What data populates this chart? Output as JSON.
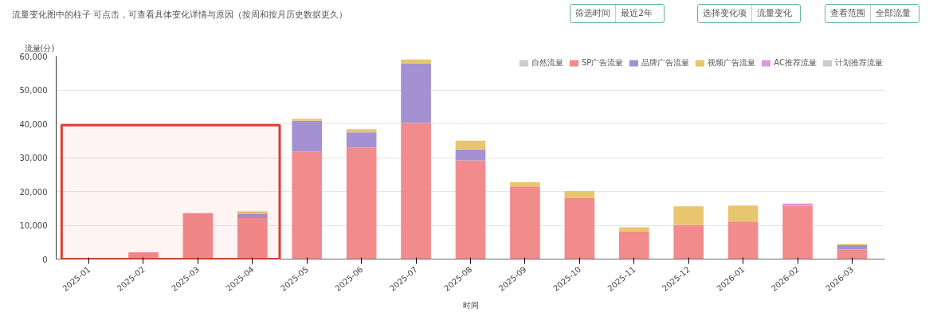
{
  "chart_data": {
    "type": "bar",
    "title": "流量变化图中的柱子 可点击，可查看具体变化详情与原因（按周和按月历史数据更久）",
    "annotations": [
      "筛选时间",
      "最近2年",
      "选择变化项",
      "流量变化",
      "查看范围",
      "全部流量"
    ],
    "xlabel": "时间",
    "ylabel": "流量(分)",
    "categories": [
      "2025-01",
      "2025-02",
      "2025-03",
      "2025-04",
      "2025-05",
      "2025-06",
      "2025-07",
      "2025-08",
      "2025-09",
      "2025-10",
      "2025-11",
      "2025-12",
      "2026-01",
      "2026-02",
      "2026-03"
    ],
    "stacked": true,
    "series": [
      {
        "name": "自然流量",
        "color": "#cccccc",
        "values": [
          null,
          null,
          null,
          null,
          null,
          null,
          null,
          null,
          null,
          null,
          null,
          null,
          null,
          null,
          null
        ]
      },
      {
        "name": "SP广告流量",
        "color": "#f28b8c",
        "values": [
          300,
          2000,
          13600,
          12100,
          31800,
          33000,
          40300,
          29200,
          21500,
          18000,
          8200,
          10100,
          11100,
          15700,
          2800
        ]
      },
      {
        "name": "品牌广告流量",
        "color": "#a391d4",
        "values": [
          null,
          null,
          null,
          1200,
          9100,
          4500,
          17600,
          3200,
          null,
          null,
          null,
          null,
          null,
          null,
          1300
        ]
      },
      {
        "name": "视频广告流量",
        "color": "#e8c56f",
        "values": [
          null,
          null,
          null,
          800,
          600,
          900,
          1100,
          2600,
          1200,
          2100,
          1200,
          5500,
          4700,
          null,
          400
        ]
      },
      {
        "name": "AC推荐流量",
        "color": "#d99bd6",
        "values": [
          null,
          null,
          null,
          null,
          null,
          null,
          null,
          null,
          null,
          null,
          null,
          null,
          null,
          700,
          null
        ]
      },
      {
        "name": "计划推荐流量",
        "color": "#cccccc",
        "values": [
          null,
          null,
          null,
          null,
          null,
          null,
          null,
          null,
          null,
          null,
          null,
          null,
          null,
          null,
          null
        ]
      }
    ],
    "ylim": [
      0,
      60000
    ],
    "yticks": [
      0,
      {
        "value": 10000,
        "label": "10,000"
      },
      {
        "value": 20000,
        "label": "20,000"
      },
      {
        "value": 30000,
        "label": "30,000"
      },
      {
        "value": 40000,
        "label": "40,000"
      },
      {
        "value": 50000,
        "label": "50,000"
      },
      {
        "value": 60000,
        "label": "60,000"
      }
    ],
    "grid": "y",
    "legend": "top",
    "bands": [
      {
        "axis": "x",
        "from": "2025-01",
        "to": "2025-04",
        "color": "#e03c31"
      }
    ]
  }
}
